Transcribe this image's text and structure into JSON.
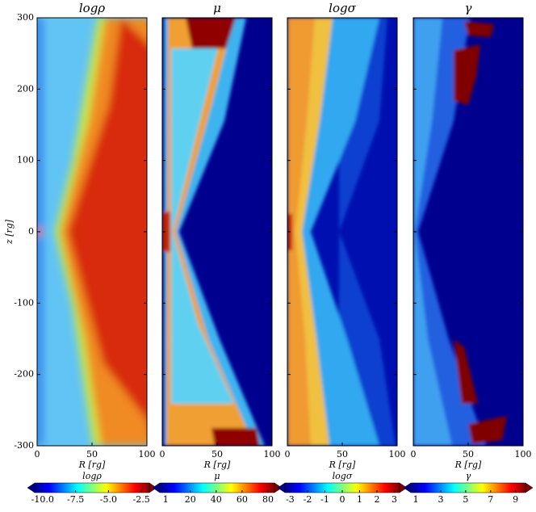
{
  "chart_data": [
    {
      "type": "heatmap",
      "title": "logρ",
      "xlabel": "R [rg]",
      "ylabel": "z [rg]",
      "xlim": [
        0,
        100
      ],
      "xticks": [
        0,
        50,
        100
      ],
      "ylim": [
        -300,
        300
      ],
      "yticks": [
        -300,
        -200,
        -100,
        0,
        100,
        200,
        300
      ],
      "colorbar": {
        "label": "logρ",
        "lim": [
          -10.6,
          -1.9
        ],
        "ticks": [
          {
            "value": -10,
            "label": "-10.0"
          },
          -7.5,
          {
            "value": -5,
            "label": "-5.0"
          },
          -2.5
        ]
      }
    },
    {
      "type": "heatmap",
      "title": "μ",
      "xlabel": "R [rg]",
      "xlim": [
        0,
        100
      ],
      "xticks": [
        0,
        50,
        100
      ],
      "ylim": [
        -300,
        300
      ],
      "yticks": [
        -300,
        -200,
        -100,
        0,
        100,
        200,
        300
      ],
      "colorbar": {
        "label": "μ",
        "lim": [
          -3.5,
          85
        ],
        "ticks": [
          1,
          20,
          40,
          60,
          80
        ]
      }
    },
    {
      "type": "heatmap",
      "title": "logσ",
      "xlabel": "R [rg]",
      "xlim": [
        0,
        100
      ],
      "xticks": [
        0,
        50,
        100
      ],
      "ylim": [
        -300,
        300
      ],
      "yticks": [
        -300,
        -200,
        -100,
        0,
        100,
        200,
        300
      ],
      "colorbar": {
        "label": "logσ",
        "lim": [
          -3.3,
          3.3
        ],
        "ticks": [
          -3,
          -2,
          -1,
          0,
          1,
          2,
          3
        ]
      }
    },
    {
      "type": "heatmap",
      "title": "γ",
      "xlabel": "R [rg]",
      "xlim": [
        0,
        100
      ],
      "xticks": [
        0,
        50,
        100
      ],
      "ylim": [
        -300,
        300
      ],
      "yticks": [
        -300,
        -200,
        -100,
        0,
        100,
        200,
        300
      ],
      "colorbar": {
        "label": "γ",
        "lim": [
          0.6,
          9.8
        ],
        "ticks": [
          1,
          3,
          5,
          7,
          9
        ]
      }
    }
  ]
}
